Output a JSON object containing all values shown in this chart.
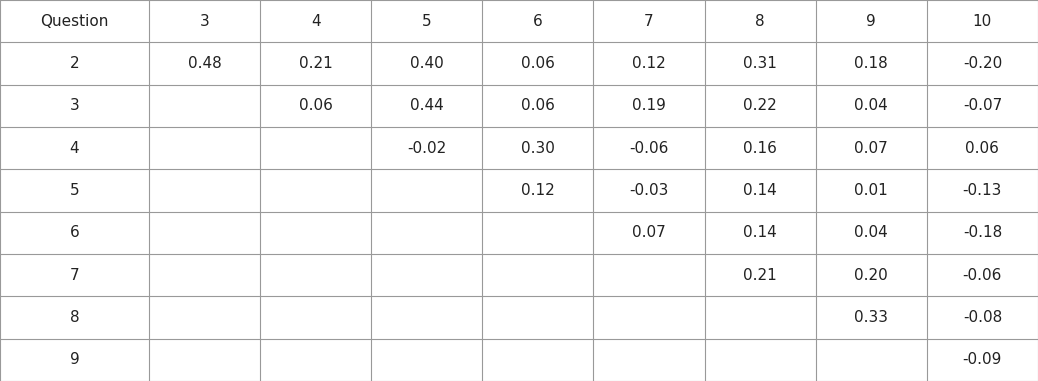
{
  "col_headers": [
    "Question",
    "3",
    "4",
    "5",
    "6",
    "7",
    "8",
    "9",
    "10"
  ],
  "row_labels": [
    "2",
    "3",
    "4",
    "5",
    "6",
    "7",
    "8",
    "9"
  ],
  "table_data": [
    [
      "0.48",
      "0.21",
      "0.40",
      "0.06",
      "0.12",
      "0.31",
      "0.18",
      "-0.20"
    ],
    [
      "",
      "0.06",
      "0.44",
      "0.06",
      "0.19",
      "0.22",
      "0.04",
      "-0.07"
    ],
    [
      "",
      "",
      "-0.02",
      "0.30",
      "-0.06",
      "0.16",
      "0.07",
      "0.06"
    ],
    [
      "",
      "",
      "",
      "0.12",
      "-0.03",
      "0.14",
      "0.01",
      "-0.13"
    ],
    [
      "",
      "",
      "",
      "",
      "0.07",
      "0.14",
      "0.04",
      "-0.18"
    ],
    [
      "",
      "",
      "",
      "",
      "",
      "0.21",
      "0.20",
      "-0.06"
    ],
    [
      "",
      "",
      "",
      "",
      "",
      "",
      "0.33",
      "-0.08"
    ],
    [
      "",
      "",
      "",
      "",
      "",
      "",
      "",
      "-0.09"
    ]
  ],
  "background_color": "#ffffff",
  "line_color": "#999999",
  "text_color": "#222222",
  "font_size": 11,
  "fig_width": 10.38,
  "fig_height": 3.81,
  "dpi": 100
}
